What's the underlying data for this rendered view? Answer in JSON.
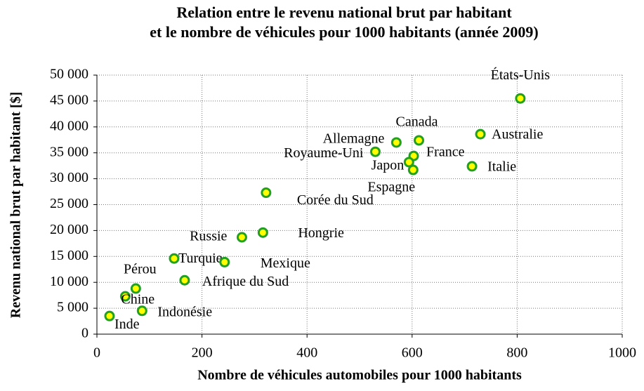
{
  "chart_data": {
    "type": "scatter",
    "title": [
      "Relation entre le revenu national brut par habitant",
      "et le nombre de véhicules pour 1000 habitants (année 2009)"
    ],
    "xlabel": "Nombre de véhicules automobiles pour 1000 habitants",
    "ylabel": "Revenu national brut par habitant [$]",
    "labels": [
      "États-Unis",
      "Australie",
      "Canada",
      "Allemagne",
      "Royaume-Uni",
      "France",
      "Japon",
      "Espagne",
      "Italie",
      "Corée du Sud",
      "Hongrie",
      "Russie",
      "Turquie",
      "Mexique",
      "Afrique du Sud",
      "Pérou",
      "Chine",
      "Indonésie",
      "Inde"
    ],
    "x": [
      806,
      730,
      613,
      570,
      530,
      603,
      594,
      602,
      714,
      322,
      316,
      276,
      147,
      243,
      167,
      74,
      54,
      86,
      24
    ],
    "values": [
      45500,
      38600,
      37400,
      37000,
      35200,
      34400,
      33200,
      31700,
      32400,
      27300,
      19600,
      18700,
      14600,
      13900,
      10400,
      8800,
      7300,
      4500,
      3500
    ],
    "color": "#ffff00",
    "edge_color": "#22a022",
    "xlim": [
      0,
      1000
    ],
    "xticks": [
      0,
      200,
      400,
      600,
      800,
      1000
    ],
    "ylim": [
      0,
      50000
    ],
    "yticks": [
      0,
      {
        "value": 5000,
        "label": "5 000"
      },
      {
        "value": 10000,
        "label": "10 000"
      },
      {
        "value": 15000,
        "label": "15 000"
      },
      {
        "value": 20000,
        "label": "20 000"
      },
      {
        "value": 25000,
        "label": "25 000"
      },
      {
        "value": 30000,
        "label": "30 000"
      },
      {
        "value": 35000,
        "label": "35 000"
      },
      {
        "value": 40000,
        "label": "40 000"
      },
      {
        "value": 45000,
        "label": "45 000"
      },
      {
        "value": 50000,
        "label": "50 000"
      }
    ],
    "grid": true
  }
}
